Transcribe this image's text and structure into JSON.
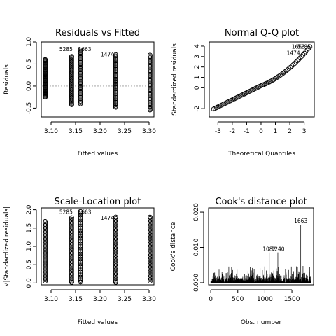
{
  "chart_data": [
    {
      "type": "scatter",
      "title": "Residuals vs Fitted",
      "xlabel": "Fitted values",
      "ylabel": "Residuals",
      "xlim": [
        3.08,
        3.31
      ],
      "ylim": [
        -0.7,
        1.0
      ],
      "xticks": [
        "3.10",
        "3.15",
        "3.20",
        "3.25",
        "3.30"
      ],
      "yticks": [
        "-0.5",
        "0.0",
        "0.5",
        "1.0"
      ],
      "reference_line": 0,
      "groups": [
        {
          "x": 3.088,
          "ymin": -0.25,
          "ymax": 0.6
        },
        {
          "x": 3.142,
          "ymin": -0.42,
          "ymax": 0.67
        },
        {
          "x": 3.16,
          "ymin": -0.4,
          "ymax": 0.82
        },
        {
          "x": 3.232,
          "ymin": -0.48,
          "ymax": 0.71
        },
        {
          "x": 3.302,
          "ymin": -0.54,
          "ymax": 0.7
        }
      ],
      "annotations": [
        {
          "label": "5285",
          "x": 3.142,
          "y": 0.84
        },
        {
          "label": "1663",
          "x": 3.16,
          "y": 0.84
        },
        {
          "label": "1474",
          "x": 3.232,
          "y": 0.72
        }
      ]
    },
    {
      "type": "scatter",
      "title": "Normal Q-Q plot",
      "xlabel": "Theoretical Quantiles",
      "ylabel": "Standardized residuals",
      "xlim": [
        -3.6,
        3.7
      ],
      "ylim": [
        -2.8,
        4.4
      ],
      "xticks": [
        "-3",
        "-2",
        "-1",
        "0",
        "1",
        "2",
        "3"
      ],
      "yticks": [
        "-2",
        "0",
        "1",
        "2",
        "3",
        "4"
      ],
      "annotations": [
        {
          "label": "1663",
          "x": 3.35,
          "y": 3.95
        },
        {
          "label": "5285",
          "x": 3.55,
          "y": 3.95
        },
        {
          "label": "1474",
          "x": 3.1,
          "y": 3.35
        }
      ]
    },
    {
      "type": "scatter",
      "title": "Scale-Location plot",
      "xlabel": "Fitted values",
      "ylabel": "√|Standardized residuals|",
      "xlim": [
        3.08,
        3.31
      ],
      "ylim": [
        -0.05,
        2.05
      ],
      "xticks": [
        "3.10",
        "3.15",
        "3.20",
        "3.25",
        "3.30"
      ],
      "yticks": [
        "0.0",
        "0.5",
        "1.0",
        "1.5",
        "2.0"
      ],
      "groups": [
        {
          "x": 3.088,
          "ymin": 0.05,
          "ymax": 1.68
        },
        {
          "x": 3.142,
          "ymin": 0.02,
          "ymax": 1.78
        },
        {
          "x": 3.16,
          "ymin": 0.03,
          "ymax": 1.95
        },
        {
          "x": 3.232,
          "ymin": 0.02,
          "ymax": 1.8
        },
        {
          "x": 3.302,
          "ymin": 0.05,
          "ymax": 1.8
        }
      ],
      "annotations": [
        {
          "label": "5285",
          "x": 3.142,
          "y": 1.96
        },
        {
          "label": "1663",
          "x": 3.16,
          "y": 1.96
        },
        {
          "label": "1474",
          "x": 3.232,
          "y": 1.8
        }
      ]
    },
    {
      "type": "bar",
      "title": "Cook's distance plot",
      "xlabel": "Obs. number",
      "ylabel": "Cook's distance",
      "xlim": [
        -40,
        1900
      ],
      "ylim": [
        -0.0006,
        0.0212
      ],
      "xticks": [
        "0",
        "500",
        "1000",
        "1500"
      ],
      "yticks": [
        "0.000",
        "0.010",
        "0.020"
      ],
      "highlight_spikes": [
        {
          "label": "1082",
          "x": 1082,
          "y": 0.0086
        },
        {
          "label": "1240",
          "x": 1240,
          "y": 0.0086
        },
        {
          "label": "1663",
          "x": 1663,
          "y": 0.0164
        }
      ],
      "annotations": [
        {
          "label": "1082",
          "x": 1082,
          "y": 0.0086
        },
        {
          "label": "1240",
          "x": 1240,
          "y": 0.0086
        },
        {
          "label": "1663",
          "x": 1663,
          "y": 0.0164
        }
      ]
    }
  ]
}
